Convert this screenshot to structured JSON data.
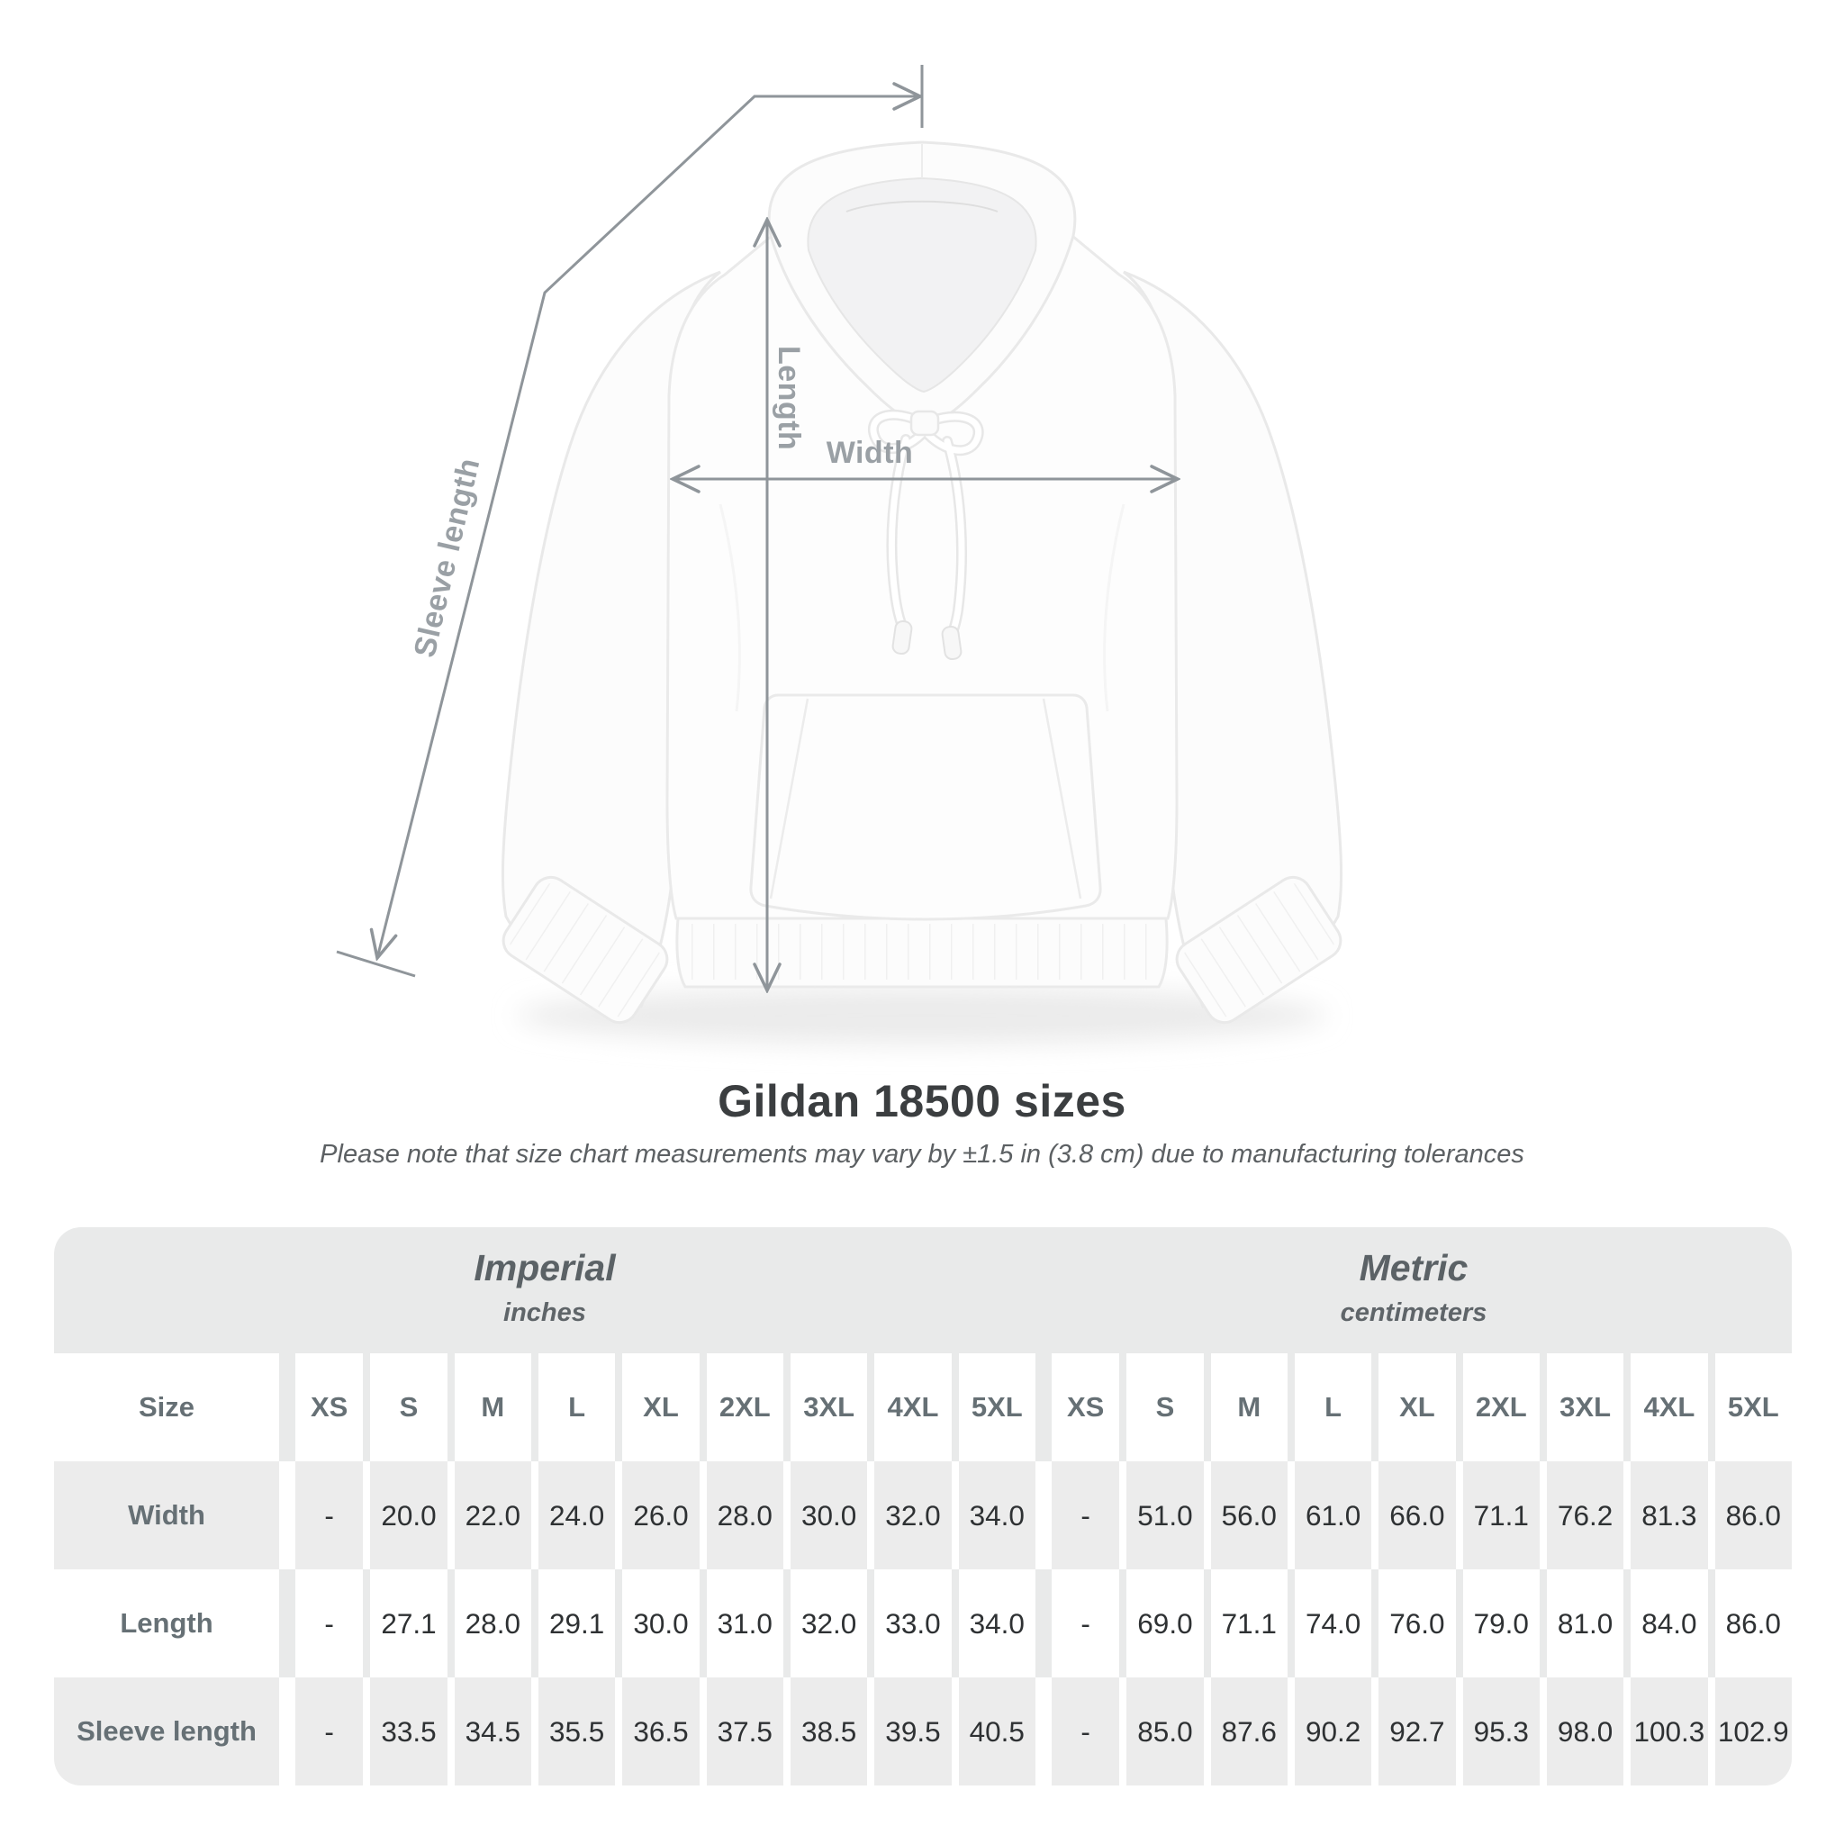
{
  "diagram": {
    "length_label": "Length",
    "width_label": "Width",
    "sleeve_length_label": "Sleeve length",
    "line_color": "#8f959a",
    "label_color": "#9aa0a5"
  },
  "chart_data": {
    "type": "table",
    "title": "Gildan 18500 sizes",
    "note": "Please note that size chart measurements may vary by ±1.5 in (3.8 cm) due to manufacturing tolerances",
    "groups": [
      {
        "label": "Imperial",
        "sublabel": "inches"
      },
      {
        "label": "Metric",
        "sublabel": "centimeters"
      }
    ],
    "size_header": "Size",
    "columns": [
      "XS",
      "S",
      "M",
      "L",
      "XL",
      "2XL",
      "3XL",
      "4XL",
      "5XL",
      "XS",
      "S",
      "M",
      "L",
      "XL",
      "2XL",
      "3XL",
      "4XL",
      "5XL"
    ],
    "rows": [
      {
        "label": "Width",
        "values": [
          "-",
          "20.0",
          "22.0",
          "24.0",
          "26.0",
          "28.0",
          "30.0",
          "32.0",
          "34.0",
          "-",
          "51.0",
          "56.0",
          "61.0",
          "66.0",
          "71.1",
          "76.2",
          "81.3",
          "86.0"
        ]
      },
      {
        "label": "Length",
        "values": [
          "-",
          "27.1",
          "28.0",
          "29.1",
          "30.0",
          "31.0",
          "32.0",
          "33.0",
          "34.0",
          "-",
          "69.0",
          "71.1",
          "74.0",
          "76.0",
          "79.0",
          "81.0",
          "84.0",
          "86.0"
        ]
      },
      {
        "label": "Sleeve length",
        "values": [
          "-",
          "33.5",
          "34.5",
          "35.5",
          "36.5",
          "37.5",
          "38.5",
          "39.5",
          "40.5",
          "-",
          "85.0",
          "87.6",
          "90.2",
          "92.7",
          "95.3",
          "98.0",
          "100.3",
          "102.9"
        ]
      }
    ]
  },
  "colors": {
    "band_background": "#e9eaea",
    "gray_row_background": "#ececec",
    "header_text": "#667075",
    "value_text": "#2e3133",
    "title_text": "#3b3e40",
    "note_text": "#5c6063"
  }
}
